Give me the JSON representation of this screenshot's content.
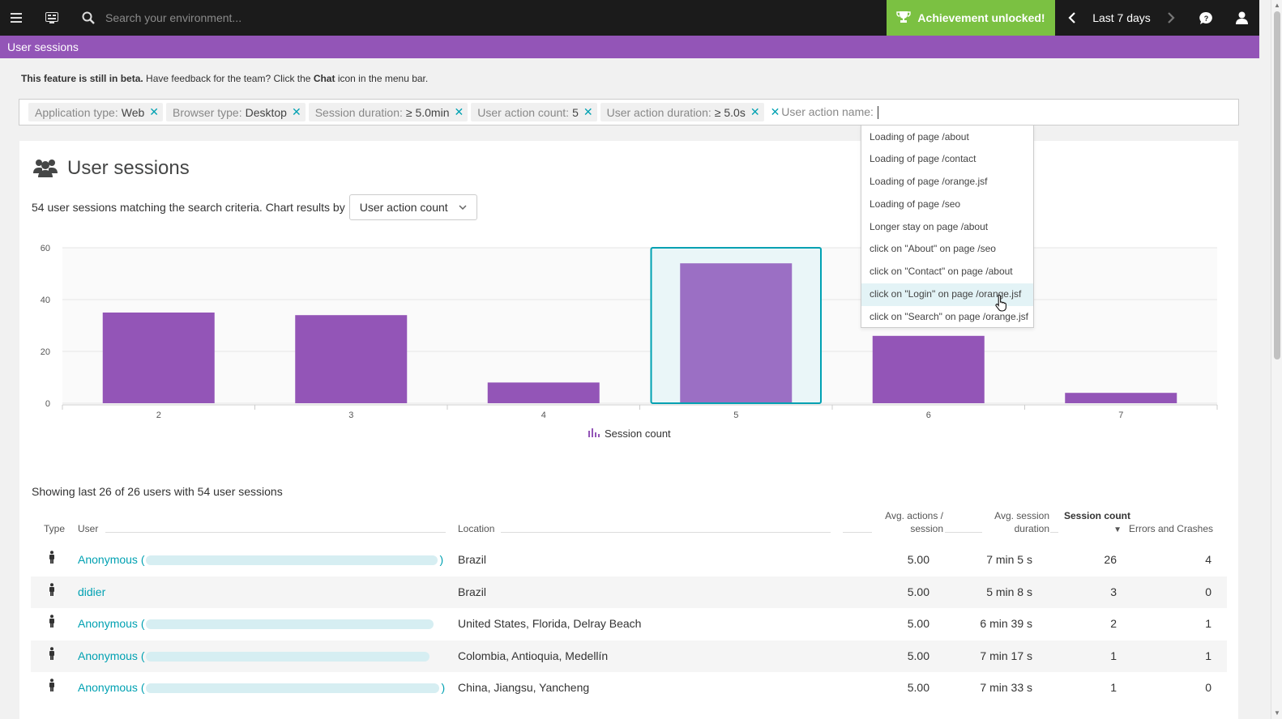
{
  "topbar": {
    "search_placeholder": "Search your environment...",
    "achievement_label": "Achievement unlocked!",
    "timeframe_label": "Last 7 days",
    "icons": [
      "menu-icon",
      "dashboard-icon",
      "search-icon",
      "trophy-icon",
      "chevron-left-icon",
      "chevron-right-icon",
      "chat-icon",
      "user-icon"
    ]
  },
  "header": {
    "title": "User sessions"
  },
  "beta_note": {
    "bold": "This feature is still in beta.",
    "text1": " Have feedback for the team? Click the ",
    "chat": "Chat",
    "text2": " icon in the menu bar."
  },
  "filters": {
    "chips": [
      {
        "key": "Application type:",
        "value": "Web"
      },
      {
        "key": "Browser type:",
        "value": "Desktop"
      },
      {
        "key": "Session duration:",
        "value": "≥ 5.0min"
      },
      {
        "key": "User action count:",
        "value": "5"
      },
      {
        "key": "User action duration:",
        "value": "≥ 5.0s"
      }
    ],
    "input_label": "User action name:"
  },
  "dropdown": {
    "items": [
      "Loading of page /about",
      "Loading of page /contact",
      "Loading of page /orange.jsf",
      "Loading of page /seo",
      "Longer stay on page /about",
      "click on \"About\" on page /seo",
      "click on \"Contact\" on page /about",
      "click on \"Login\" on page /orange.jsf",
      "click on \"Search\" on page /orange.jsf"
    ],
    "hovered_index": 7
  },
  "card": {
    "title": "User sessions",
    "match_text": "54 user sessions matching the search criteria. Chart results by",
    "chart_by_selected": "User action count"
  },
  "chart_data": {
    "type": "bar",
    "categories": [
      "2",
      "3",
      "4",
      "5",
      "6",
      "7"
    ],
    "series": [
      {
        "name": "Session count",
        "values": [
          35,
          34,
          8,
          54,
          26,
          4
        ]
      }
    ],
    "ylim": [
      0,
      60
    ],
    "yticks": [
      "0",
      "20",
      "40",
      "60"
    ],
    "selected_category": "5",
    "bar_color": "#9355b7",
    "selected_bar_color": "#9b6fc4",
    "selection_border_color": "#00a1b2",
    "legend_position": "bottom-center",
    "grid": true
  },
  "table": {
    "summary": "Showing last 26 of 26 users with 54 user sessions",
    "headers": {
      "type": "Type",
      "user": "User",
      "location": "Location",
      "avg_actions_1": "Avg. actions /",
      "avg_actions_2": "session",
      "avg_duration_1": "Avg. session",
      "avg_duration_2": "duration",
      "session_count": "Session count",
      "sort_indicator": "▼",
      "errors": "Errors and Crashes"
    },
    "rows": [
      {
        "user": "Anonymous (",
        "user_end": ")",
        "anonymous": true,
        "location": "Brazil",
        "avg_actions": "5.00",
        "avg_duration": "7 min 5 s",
        "session_count": "26",
        "errors": "4"
      },
      {
        "user": "didier",
        "user_end": "",
        "anonymous": false,
        "location": "Brazil",
        "avg_actions": "5.00",
        "avg_duration": "5 min 8 s",
        "session_count": "3",
        "errors": "0"
      },
      {
        "user": "Anonymous (",
        "user_end": "",
        "anonymous": true,
        "location": "United States, Florida, Delray Beach",
        "avg_actions": "5.00",
        "avg_duration": "6 min 39 s",
        "session_count": "2",
        "errors": "1"
      },
      {
        "user": "Anonymous (",
        "user_end": "",
        "anonymous": true,
        "location": "Colombia, Antioquia, Medellín",
        "avg_actions": "5.00",
        "avg_duration": "7 min 17 s",
        "session_count": "1",
        "errors": "1"
      },
      {
        "user": "Anonymous (",
        "user_end": ")",
        "anonymous": true,
        "location": "China, Jiangsu, Yancheng",
        "avg_actions": "5.00",
        "avg_duration": "7 min 33 s",
        "session_count": "1",
        "errors": "0"
      }
    ]
  }
}
